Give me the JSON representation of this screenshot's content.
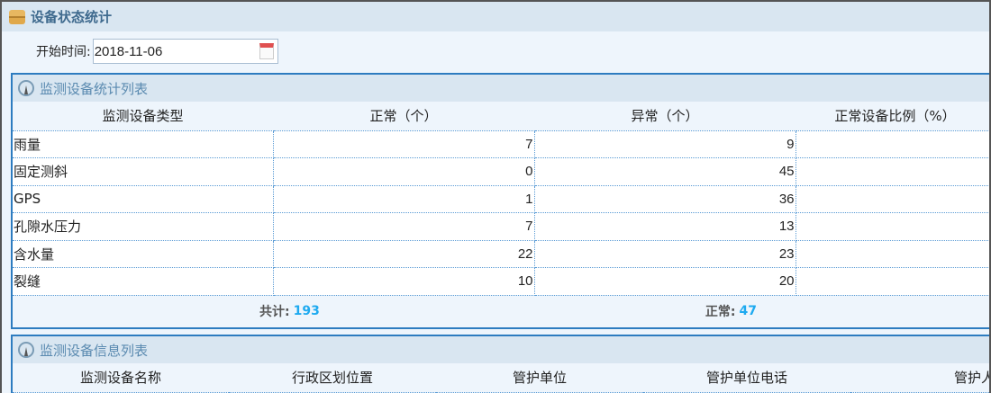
{
  "title": "设备状态统计",
  "filter": {
    "label": "开始时间:",
    "date": "2018-11-06"
  },
  "stats": {
    "title": "监测设备统计列表",
    "headers": [
      "监测设备类型",
      "正常（个）",
      "异常（个）",
      "正常设备比例（%）"
    ],
    "rows": [
      [
        "雨量",
        "7",
        "9",
        ""
      ],
      [
        "固定测斜",
        "0",
        "45",
        ""
      ],
      [
        "GPS",
        "1",
        "36",
        ""
      ],
      [
        "孔隙水压力",
        "7",
        "13",
        ""
      ],
      [
        "含水量",
        "22",
        "23",
        ""
      ],
      [
        "裂缝",
        "10",
        "20",
        ""
      ]
    ],
    "total_label": "共计:",
    "total": "193",
    "normal_label": "正常:",
    "normal": "47"
  },
  "info": {
    "title": "监测设备信息列表",
    "headers": [
      "监测设备名称",
      "行政区划位置",
      "管护单位",
      "管护单位电话",
      "管护人"
    ]
  }
}
